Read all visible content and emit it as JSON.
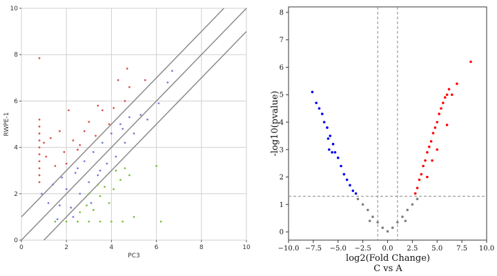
{
  "chart_data": [
    {
      "type": "scatter",
      "xlabel": "PC3",
      "ylabel": "RWPE-1",
      "xlim": [
        0,
        10
      ],
      "ylim": [
        0,
        10
      ],
      "xticks": [
        "0",
        "2",
        "4",
        "6",
        "8",
        "10"
      ],
      "yticks": [
        "0",
        "2",
        "4",
        "6",
        "8",
        "10"
      ],
      "grid": true,
      "reference_lines": [
        {
          "intercept": 1,
          "slope": 1
        },
        {
          "intercept": 0,
          "slope": 1
        },
        {
          "intercept": -1,
          "slope": 1
        }
      ],
      "colors": {
        "up": "#d9534f",
        "mid": "#7b7bd6",
        "down": "#7fbf3f",
        "line": "#8a8a8a",
        "grid": "#cfcfcf"
      },
      "series": [
        {
          "group": "up",
          "points": [
            [
              0.8,
              7.85
            ],
            [
              0.8,
              5.2
            ],
            [
              0.8,
              4.9
            ],
            [
              0.8,
              4.6
            ],
            [
              0.8,
              4.3
            ],
            [
              0.8,
              4.0
            ],
            [
              0.8,
              3.7
            ],
            [
              0.8,
              3.4
            ],
            [
              0.8,
              3.1
            ],
            [
              0.8,
              2.8
            ],
            [
              0.8,
              2.5
            ],
            [
              1.0,
              4.2
            ],
            [
              1.1,
              3.6
            ],
            [
              1.3,
              4.4
            ],
            [
              1.5,
              3.2
            ],
            [
              1.7,
              4.7
            ],
            [
              1.9,
              3.8
            ],
            [
              2.1,
              5.6
            ],
            [
              2.3,
              4.3
            ],
            [
              2.5,
              3.9
            ],
            [
              2.8,
              4.7
            ],
            [
              3.0,
              5.1
            ],
            [
              3.3,
              4.5
            ],
            [
              3.6,
              5.6
            ],
            [
              3.9,
              5.0
            ],
            [
              4.1,
              5.7
            ],
            [
              4.3,
              6.9
            ],
            [
              4.6,
              6.0
            ],
            [
              4.7,
              7.4
            ],
            [
              4.8,
              6.6
            ],
            [
              5.5,
              6.9
            ],
            [
              2.0,
              3.3
            ],
            [
              2.6,
              4.1
            ],
            [
              3.4,
              5.8
            ]
          ]
        },
        {
          "group": "mid",
          "points": [
            [
              0.9,
              2.0
            ],
            [
              1.2,
              1.6
            ],
            [
              1.4,
              2.4
            ],
            [
              1.7,
              1.5
            ],
            [
              2.0,
              2.2
            ],
            [
              2.2,
              1.4
            ],
            [
              2.4,
              2.9
            ],
            [
              2.6,
              2.0
            ],
            [
              2.8,
              3.4
            ],
            [
              3.0,
              2.5
            ],
            [
              3.2,
              3.8
            ],
            [
              3.4,
              2.8
            ],
            [
              3.6,
              4.2
            ],
            [
              3.8,
              3.3
            ],
            [
              4.0,
              4.6
            ],
            [
              4.2,
              3.6
            ],
            [
              4.4,
              5.0
            ],
            [
              4.6,
              4.2
            ],
            [
              4.8,
              5.3
            ],
            [
              5.0,
              4.6
            ],
            [
              5.3,
              5.4
            ],
            [
              5.6,
              5.2
            ],
            [
              6.1,
              5.9
            ],
            [
              6.5,
              6.8
            ],
            [
              6.7,
              7.3
            ],
            [
              1.8,
              2.7
            ],
            [
              2.5,
              3.1
            ],
            [
              3.5,
              3.0
            ],
            [
              4.5,
              4.8
            ],
            [
              3.1,
              1.6
            ],
            [
              2.3,
              1.0
            ],
            [
              1.6,
              0.9
            ]
          ]
        },
        {
          "group": "down",
          "points": [
            [
              1.5,
              0.8
            ],
            [
              2.0,
              0.8
            ],
            [
              2.5,
              0.8
            ],
            [
              3.0,
              0.8
            ],
            [
              3.5,
              0.8
            ],
            [
              4.0,
              0.8
            ],
            [
              4.5,
              0.8
            ],
            [
              2.6,
              1.2
            ],
            [
              2.9,
              1.5
            ],
            [
              3.2,
              1.3
            ],
            [
              3.5,
              1.9
            ],
            [
              3.7,
              2.3
            ],
            [
              3.9,
              1.6
            ],
            [
              4.1,
              2.2
            ],
            [
              4.4,
              2.6
            ],
            [
              4.6,
              3.1
            ],
            [
              3.4,
              2.4
            ],
            [
              3.0,
              2.0
            ],
            [
              4.2,
              3.0
            ],
            [
              6.0,
              3.2
            ],
            [
              6.2,
              0.8
            ],
            [
              5.0,
              1.0
            ],
            [
              4.8,
              2.8
            ]
          ]
        }
      ]
    },
    {
      "type": "scatter",
      "xlabel": "log2(Fold Change)",
      "ylabel": "-log10(pvalue)",
      "subtitle": "C  vs  A",
      "xlim": [
        -10,
        10
      ],
      "ylim": [
        -0.3,
        8.2
      ],
      "xticks": [
        "−10.0",
        "−7.5",
        "−5.0",
        "−2.5",
        "0.0",
        "2.5",
        "5.0",
        "7.5",
        "10.0"
      ],
      "yticks": [
        "0",
        "1",
        "2",
        "3",
        "4",
        "5",
        "6",
        "7",
        "8"
      ],
      "grid": false,
      "thresholds": {
        "x": [
          -1,
          1
        ],
        "y": 1.3
      },
      "colors": {
        "down": "#0000ee",
        "neutral": "#7f7f7f",
        "up": "#ff0000",
        "threshold": "#888888"
      },
      "series": [
        {
          "group": "down",
          "points": [
            [
              -7.6,
              5.1
            ],
            [
              -7.2,
              4.7
            ],
            [
              -6.9,
              4.5
            ],
            [
              -6.6,
              4.3
            ],
            [
              -6.4,
              4.0
            ],
            [
              -6.1,
              3.8
            ],
            [
              -5.8,
              3.5
            ],
            [
              -5.5,
              3.2
            ],
            [
              -5.3,
              2.9
            ],
            [
              -5.0,
              2.7
            ],
            [
              -4.7,
              2.4
            ],
            [
              -4.4,
              2.1
            ],
            [
              -4.1,
              1.9
            ],
            [
              -3.8,
              1.7
            ],
            [
              -3.5,
              1.5
            ],
            [
              -3.2,
              1.4
            ],
            [
              -5.9,
              3.0
            ],
            [
              -5.6,
              2.9
            ],
            [
              -6.0,
              3.4
            ]
          ]
        },
        {
          "group": "neutral",
          "points": [
            [
              -3.0,
              1.2
            ],
            [
              -2.5,
              1.0
            ],
            [
              -2.0,
              0.8
            ],
            [
              -1.5,
              0.55
            ],
            [
              -1.0,
              0.35
            ],
            [
              -0.5,
              0.15
            ],
            [
              0.0,
              0.02
            ],
            [
              0.5,
              0.15
            ],
            [
              1.0,
              0.35
            ],
            [
              1.5,
              0.55
            ],
            [
              2.0,
              0.8
            ],
            [
              2.5,
              1.0
            ],
            [
              3.0,
              1.2
            ],
            [
              -1.8,
              0.4
            ],
            [
              1.8,
              0.4
            ]
          ]
        },
        {
          "group": "up",
          "points": [
            [
              2.8,
              1.4
            ],
            [
              3.0,
              1.6
            ],
            [
              3.2,
              1.9
            ],
            [
              3.4,
              2.1
            ],
            [
              3.6,
              2.4
            ],
            [
              3.8,
              2.6
            ],
            [
              4.0,
              2.9
            ],
            [
              4.2,
              3.1
            ],
            [
              4.4,
              3.3
            ],
            [
              4.6,
              3.6
            ],
            [
              4.8,
              3.8
            ],
            [
              5.0,
              4.0
            ],
            [
              5.2,
              4.3
            ],
            [
              5.4,
              4.5
            ],
            [
              5.6,
              4.7
            ],
            [
              5.8,
              4.9
            ],
            [
              6.0,
              5.0
            ],
            [
              6.2,
              5.2
            ],
            [
              6.5,
              5.0
            ],
            [
              7.0,
              5.4
            ],
            [
              8.4,
              6.2
            ],
            [
              4.0,
              2.0
            ],
            [
              5.0,
              3.0
            ],
            [
              6.0,
              3.9
            ],
            [
              4.5,
              2.6
            ]
          ]
        }
      ]
    }
  ]
}
